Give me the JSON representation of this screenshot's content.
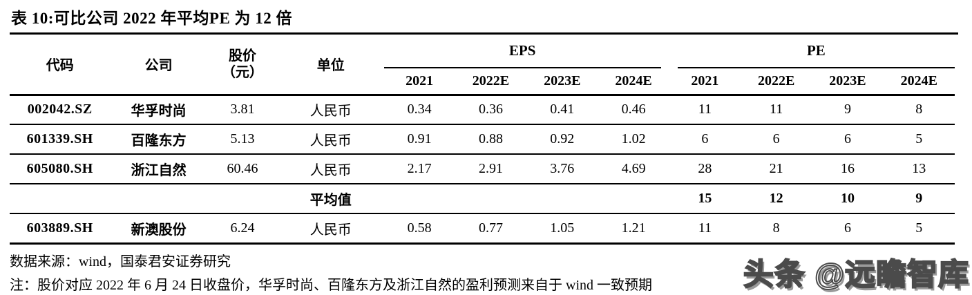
{
  "title": "表 10:可比公司 2022 年平均PE 为 12 倍",
  "table": {
    "col_headers": {
      "code": "代码",
      "company": "公司",
      "price_line1": "股价",
      "price_line2": "（元）",
      "unit": "单位"
    },
    "groups": {
      "eps": "EPS",
      "pe": "PE"
    },
    "years": [
      "2021",
      "2022E",
      "2023E",
      "2024E"
    ],
    "rows": [
      {
        "code": "002042.SZ",
        "company": "华孚时尚",
        "price": "3.81",
        "unit": "人民币",
        "eps": [
          "0.34",
          "0.36",
          "0.41",
          "0.46"
        ],
        "pe": [
          "11",
          "11",
          "9",
          "8"
        ]
      },
      {
        "code": "601339.SH",
        "company": "百隆东方",
        "price": "5.13",
        "unit": "人民币",
        "eps": [
          "0.91",
          "0.88",
          "0.92",
          "1.02"
        ],
        "pe": [
          "6",
          "6",
          "6",
          "5"
        ]
      },
      {
        "code": "605080.SH",
        "company": "浙江自然",
        "price": "60.46",
        "unit": "人民币",
        "eps": [
          "2.17",
          "2.91",
          "3.76",
          "4.69"
        ],
        "pe": [
          "28",
          "21",
          "16",
          "13"
        ]
      }
    ],
    "average_row": {
      "label": "平均值",
      "pe": [
        "15",
        "12",
        "10",
        "9"
      ]
    },
    "last_row": {
      "code": "603889.SH",
      "company": "新澳股份",
      "price": "6.24",
      "unit": "人民币",
      "eps": [
        "0.58",
        "0.77",
        "1.05",
        "1.21"
      ],
      "pe": [
        "11",
        "8",
        "6",
        "5"
      ]
    }
  },
  "source": "数据来源：wind，国泰君安证券研究",
  "note": "注：股价对应 2022 年 6 月 24 日收盘价，华孚时尚、百隆东方及浙江自然的盈利预测来自于 wind 一致预期",
  "watermark": "头条 @远瞻智库",
  "colors": {
    "text": "#000000",
    "rule": "#000000",
    "background": "#ffffff",
    "watermark_outline": "#4b4b4b",
    "watermark_shadow": "#9a9a9a"
  }
}
